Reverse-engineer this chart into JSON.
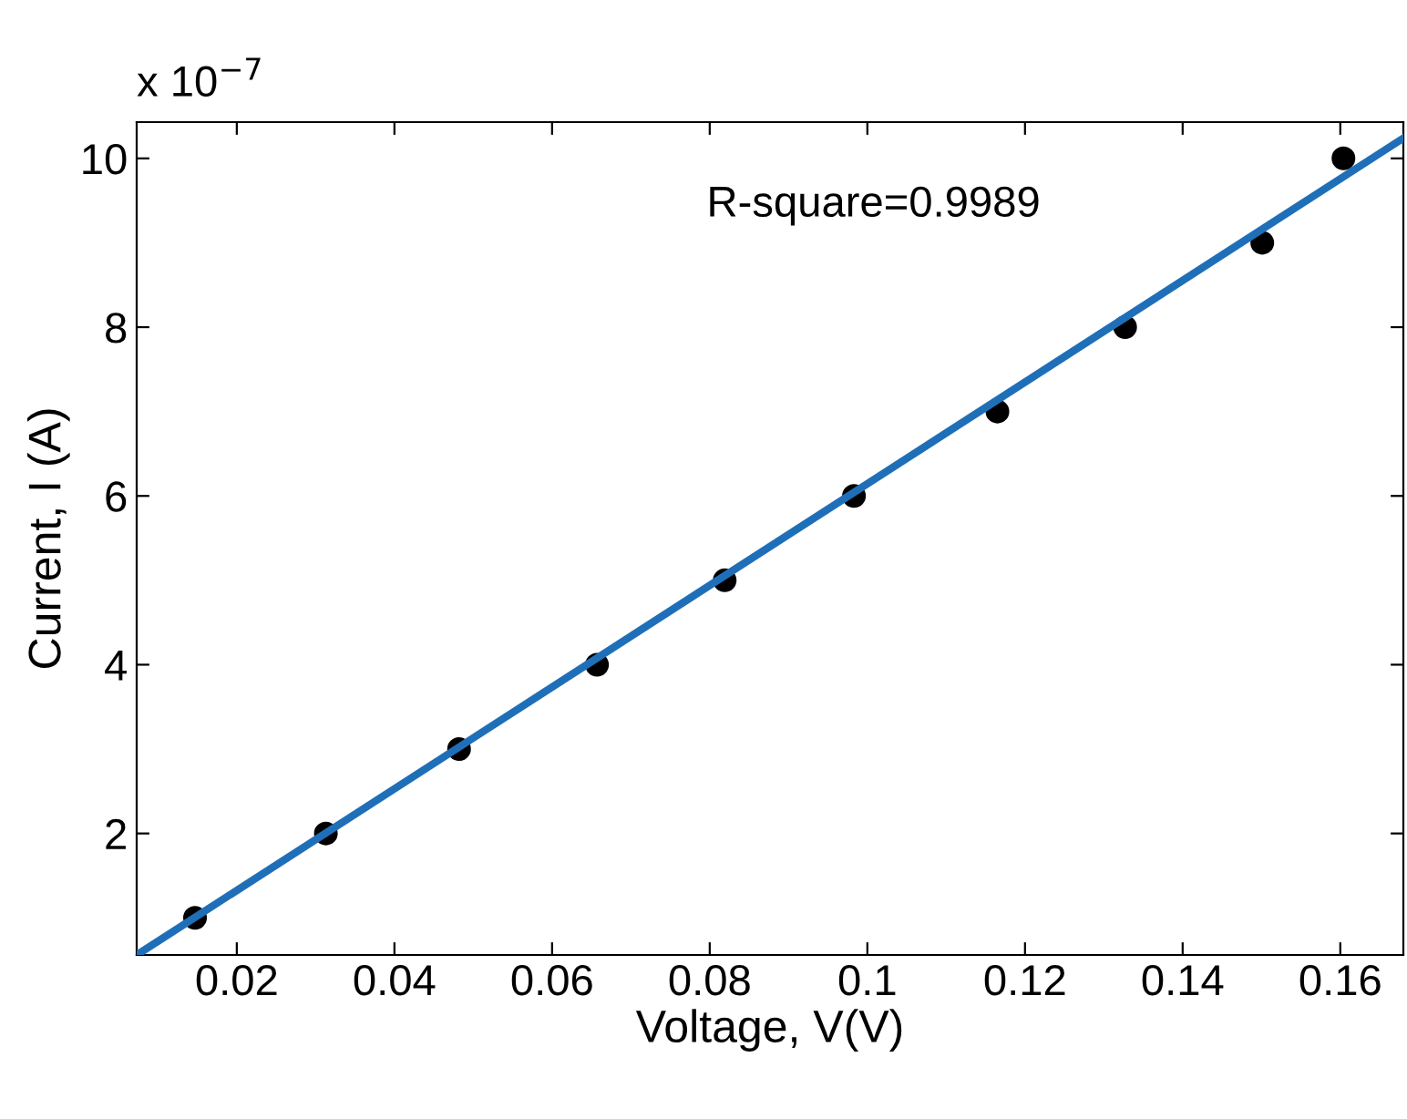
{
  "chart_data": {
    "type": "scatter",
    "xlabel": "Voltage, V(V)",
    "ylabel": "Current, I (A)",
    "annotations": [
      "R-square=0.9989",
      "x 10$^{−7}$"
    ],
    "xlim": [
      0.0073,
      0.168
    ],
    "ylim": [
      0.56,
      10.43
    ],
    "xticks": [
      0.02,
      0.04,
      0.06,
      0.08,
      {
        "value": 0.1,
        "label": "0.1"
      },
      0.12,
      0.14,
      0.16
    ],
    "yticks": [
      2,
      4,
      6,
      8,
      10
    ],
    "grid": false,
    "legend": false,
    "series": [
      {
        "color": "#000000",
        "marker": "circle",
        "x": [
          0.0147,
          0.0313,
          0.0482,
          0.0657,
          0.0819,
          0.0983,
          0.1165,
          0.1327,
          0.1501,
          0.1604
        ],
        "values": [
          1,
          2,
          3,
          4,
          5,
          6,
          7,
          8,
          9,
          10
        ]
      },
      {
        "type": "line",
        "color": "#1f6fb8",
        "line_style": "solid",
        "x": [
          0.0073,
          0.168
        ],
        "values": [
          0.56,
          10.24
        ]
      }
    ]
  }
}
